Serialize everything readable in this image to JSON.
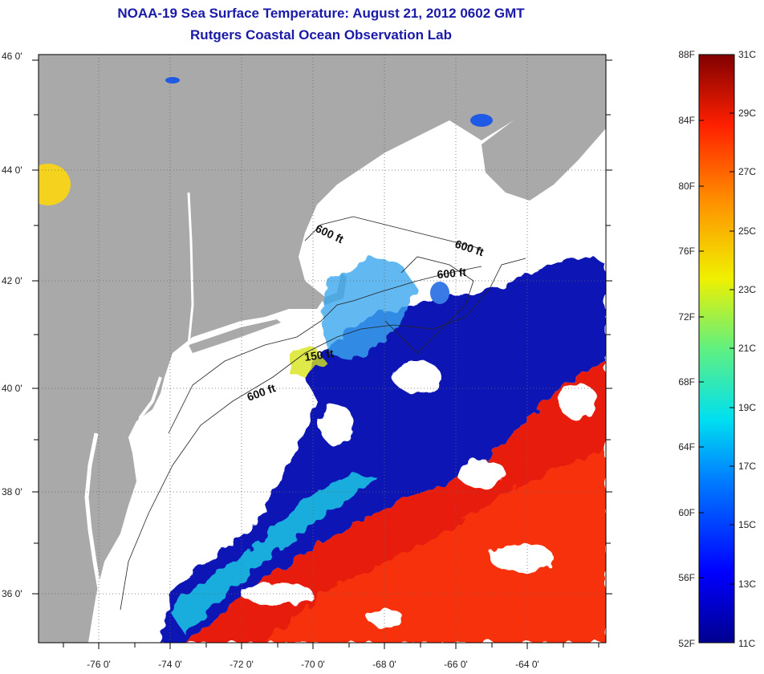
{
  "header": {
    "title": "NOAA-19 Sea Surface Temperature:  August 21, 2012 0602 GMT",
    "subtitle": "Rutgers Coastal Ocean Observation Lab"
  },
  "map": {
    "lat_labels": [
      "46 0'",
      "44 0'",
      "42 0'",
      "40 0'",
      "38 0'",
      "36 0'"
    ],
    "lon_labels": [
      "-76 0'",
      "-74 0'",
      "-72 0'",
      "-70 0'",
      "-68 0'",
      "-66 0'",
      "-64 0'"
    ],
    "contour_labels": [
      "600 ft",
      "600 ft",
      "600 ft",
      "150 ft",
      "600 ft"
    ]
  },
  "colorbar": {
    "fahrenheit": [
      "88F",
      "84F",
      "80F",
      "76F",
      "72F",
      "68F",
      "64F",
      "60F",
      "56F",
      "52F"
    ],
    "celsius": [
      "31C",
      "29C",
      "27C",
      "25C",
      "23C",
      "21C",
      "19C",
      "17C",
      "15C",
      "13C",
      "11C"
    ]
  },
  "colors": {
    "title": "#1a1aa8",
    "land": "#a9a9a9",
    "cloud": "#ffffff",
    "cold": "#0a14b4",
    "warm": "#e81e0a"
  }
}
